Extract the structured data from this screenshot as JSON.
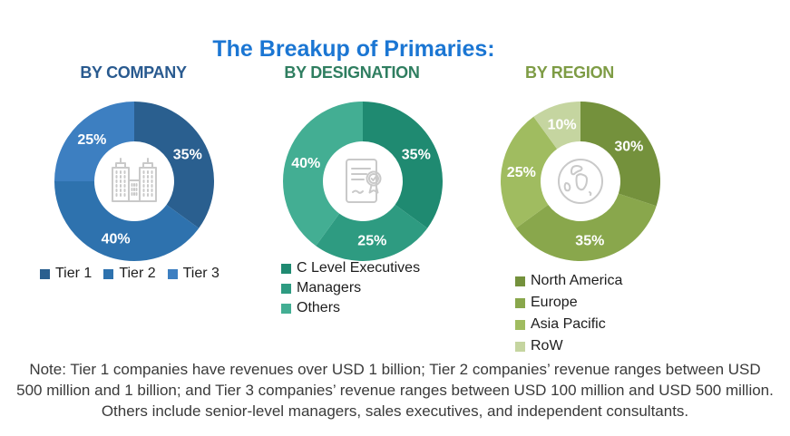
{
  "title": {
    "text": "The Breakup of Primaries:",
    "color": "#1b76d3"
  },
  "note": {
    "lines": [
      "Note: Tier 1 companies have revenues over USD 1 billion; Tier 2 companies’ revenue ranges between USD",
      "500 million and 1 billion; and Tier 3 companies’ revenue ranges between USD 100 million and USD 500 million.",
      "Others include senior-level managers, sales executives, and independent consultants."
    ]
  },
  "chart_data": [
    {
      "type": "pie",
      "donut": true,
      "title": "BY COMPANY",
      "title_color": "#295a8f",
      "center_icon": "buildings-icon",
      "start_angle": 0,
      "direction": "clockwise",
      "label_format": "percent",
      "legend_position": "bottom-horizontal",
      "categories": [
        "Tier 1",
        "Tier 2",
        "Tier 3"
      ],
      "values": [
        35,
        40,
        25
      ],
      "segments": [
        {
          "label": "Tier 1",
          "value": 35,
          "color": "#2a5f8f"
        },
        {
          "label": "Tier 2",
          "value": 40,
          "color": "#2e72ae"
        },
        {
          "label": "Tier 3",
          "value": 25,
          "color": "#3d7fc1"
        }
      ]
    },
    {
      "type": "pie",
      "donut": true,
      "title": "BY DESIGNATION",
      "title_color": "#2f7e60",
      "center_icon": "certificate-icon",
      "start_angle": 0,
      "direction": "clockwise",
      "label_format": "percent",
      "legend_position": "bottom-vertical",
      "categories": [
        "C Level Executives",
        "Managers",
        "Others"
      ],
      "values": [
        35,
        25,
        40
      ],
      "segments": [
        {
          "label": "C Level Executives",
          "value": 35,
          "color": "#1f8a71"
        },
        {
          "label": "Managers",
          "value": 25,
          "color": "#2e9b81"
        },
        {
          "label": "Others",
          "value": 40,
          "color": "#43ae93"
        }
      ]
    },
    {
      "type": "pie",
      "donut": true,
      "title": "BY REGION",
      "title_color": "#7e9c45",
      "center_icon": "globe-icon",
      "start_angle": 0,
      "direction": "clockwise",
      "label_format": "percent",
      "legend_position": "bottom-vertical",
      "categories": [
        "North America",
        "Europe",
        "Asia Pacific",
        "RoW"
      ],
      "values": [
        30,
        35,
        25,
        10
      ],
      "segments": [
        {
          "label": "North America",
          "value": 30,
          "color": "#74913c"
        },
        {
          "label": "Europe",
          "value": 35,
          "color": "#89a74c"
        },
        {
          "label": "Asia Pacific",
          "value": 25,
          "color": "#a0bc60"
        },
        {
          "label": "RoW",
          "value": 10,
          "color": "#c5d5a0"
        }
      ]
    }
  ]
}
